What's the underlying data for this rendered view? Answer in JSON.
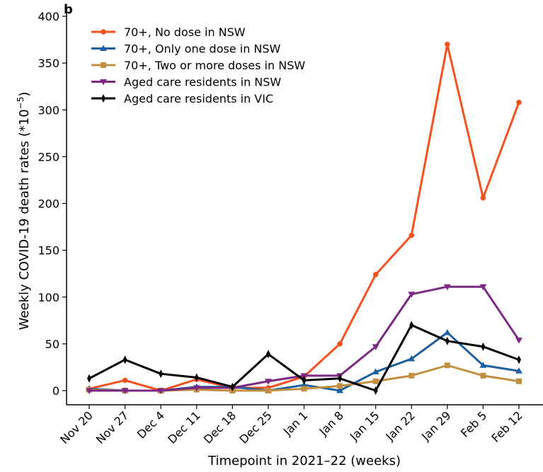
{
  "chart_data": {
    "type": "line",
    "panel_label": "b",
    "xlabel": "Timepoint in 2021–22 (weeks)",
    "ylabel": "Weekly COVID-19 death rates (*10",
    "ylabel_exp": "−5",
    "ylabel_close": ")",
    "categories": [
      "Nov 20",
      "Nov 27",
      "Dec 4",
      "Dec 11",
      "Dec 18",
      "Dec 25",
      "Jan 1",
      "Jan 8",
      "Jan 15",
      "Jan 22",
      "Jan 29",
      "Feb 5",
      "Feb 12"
    ],
    "ylim": [
      0,
      400
    ],
    "yticks": [
      0,
      50,
      100,
      150,
      200,
      250,
      300,
      350,
      400
    ],
    "grid": false,
    "legend_position": "top-left",
    "series": [
      {
        "name": "70+, No dose in NSW",
        "color": "#f4511e",
        "marker": "circle",
        "values": [
          2,
          11,
          0,
          12,
          3,
          3,
          15,
          50,
          124,
          166,
          370,
          206,
          308
        ]
      },
      {
        "name": "70+, Only one dose in NSW",
        "color": "#1f5f9e",
        "marker": "triangle-up",
        "values": [
          2,
          0,
          0,
          4,
          4,
          0,
          6,
          0,
          20,
          34,
          62,
          27,
          21
        ]
      },
      {
        "name": "70+, Two or more doses in NSW",
        "color": "#c09040",
        "marker": "square",
        "values": [
          1,
          0,
          0,
          1,
          0,
          0,
          2,
          5,
          10,
          16,
          27,
          16,
          10
        ]
      },
      {
        "name": "Aged care residents in NSW",
        "color": "#7b2a84",
        "marker": "triangle-down",
        "values": [
          0,
          0,
          0,
          3,
          3,
          10,
          16,
          16,
          47,
          103,
          111,
          111,
          54
        ]
      },
      {
        "name": "Aged care residents in VIC",
        "color": "#000000",
        "marker": "diamond",
        "values": [
          13,
          33,
          18,
          14,
          4,
          39,
          11,
          13,
          0,
          70,
          53,
          47,
          33
        ]
      }
    ]
  }
}
